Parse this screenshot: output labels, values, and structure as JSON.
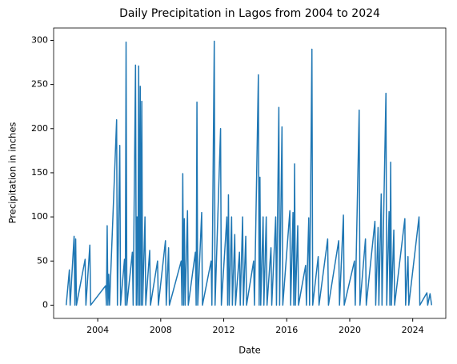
{
  "chart_data": {
    "type": "line",
    "title": "Daily Precipitation in Lagos from 2004 to 2024",
    "x_label": "Date",
    "y_label": "Precipitation in inches",
    "color": "#1f77b4",
    "x": [
      2002.0,
      2002.2,
      2002.25,
      2002.5,
      2002.55,
      2002.6,
      2002.65,
      2003.2,
      2003.25,
      2003.5,
      2003.55,
      2004.5,
      2004.55,
      2004.6,
      2004.65,
      2004.7,
      2004.75,
      2005.2,
      2005.25,
      2005.4,
      2005.45,
      2005.7,
      2005.75,
      2005.8,
      2005.85,
      2006.2,
      2006.25,
      2006.4,
      2006.45,
      2006.5,
      2006.55,
      2006.6,
      2006.65,
      2006.7,
      2006.75,
      2006.8,
      2006.85,
      2007.0,
      2007.05,
      2007.3,
      2007.35,
      2007.8,
      2007.85,
      2008.3,
      2008.35,
      2008.5,
      2008.55,
      2009.3,
      2009.35,
      2009.4,
      2009.45,
      2009.5,
      2009.55,
      2009.7,
      2009.75,
      2010.2,
      2010.25,
      2010.3,
      2010.35,
      2010.6,
      2010.65,
      2011.2,
      2011.25,
      2011.4,
      2011.45,
      2011.8,
      2011.85,
      2012.2,
      2012.25,
      2012.3,
      2012.35,
      2012.5,
      2012.55,
      2012.7,
      2012.75,
      2013.0,
      2013.05,
      2013.2,
      2013.25,
      2013.4,
      2013.45,
      2013.9,
      2013.95,
      2014.2,
      2014.25,
      2014.3,
      2014.35,
      2014.5,
      2014.55,
      2014.7,
      2014.75,
      2015.0,
      2015.05,
      2015.3,
      2015.35,
      2015.5,
      2015.55,
      2015.7,
      2015.75,
      2016.2,
      2016.25,
      2016.4,
      2016.45,
      2016.5,
      2016.55,
      2016.7,
      2016.75,
      2017.2,
      2017.25,
      2017.4,
      2017.45,
      2017.6,
      2017.65,
      2018.0,
      2018.05,
      2018.6,
      2018.65,
      2019.3,
      2019.35,
      2019.6,
      2019.65,
      2020.3,
      2020.35,
      2020.6,
      2020.65,
      2021.0,
      2021.05,
      2021.6,
      2021.65,
      2021.8,
      2021.85,
      2022.0,
      2022.05,
      2022.3,
      2022.35,
      2022.5,
      2022.55,
      2022.6,
      2022.65,
      2022.8,
      2022.85,
      2023.5,
      2023.55,
      2023.7,
      2023.75,
      2024.4,
      2024.45,
      2024.9,
      2024.95,
      2025.1,
      2025.2
    ],
    "values": [
      0,
      40,
      0,
      78,
      0,
      75,
      0,
      52,
      0,
      68,
      0,
      22,
      0,
      90,
      0,
      35,
      0,
      210,
      0,
      181,
      0,
      52,
      0,
      298,
      0,
      60,
      0,
      272,
      0,
      100,
      0,
      271,
      0,
      248,
      0,
      231,
      0,
      100,
      0,
      62,
      0,
      50,
      0,
      73,
      0,
      65,
      0,
      50,
      0,
      149,
      0,
      98,
      0,
      107,
      0,
      60,
      0,
      230,
      0,
      105,
      0,
      50,
      0,
      299,
      0,
      200,
      0,
      100,
      0,
      125,
      0,
      100,
      0,
      80,
      0,
      60,
      0,
      100,
      0,
      78,
      0,
      50,
      0,
      261,
      0,
      145,
      0,
      100,
      0,
      100,
      0,
      65,
      0,
      100,
      0,
      224,
      0,
      202,
      0,
      107,
      0,
      105,
      0,
      160,
      0,
      90,
      0,
      45,
      0,
      99,
      0,
      290,
      0,
      55,
      0,
      75,
      0,
      73,
      0,
      102,
      0,
      50,
      0,
      221,
      0,
      75,
      0,
      95,
      0,
      88,
      0,
      126,
      0,
      240,
      0,
      106,
      0,
      162,
      0,
      85,
      0,
      98,
      0,
      55,
      0,
      100,
      0,
      14,
      0,
      13,
      0
    ],
    "xlim": [
      2001.2,
      2026.1
    ],
    "xticks": [
      2004,
      2008,
      2012,
      2016,
      2020,
      2024
    ],
    "ylim": [
      -15,
      314
    ],
    "yticks": [
      0,
      50,
      100,
      150,
      200,
      250,
      300
    ]
  }
}
